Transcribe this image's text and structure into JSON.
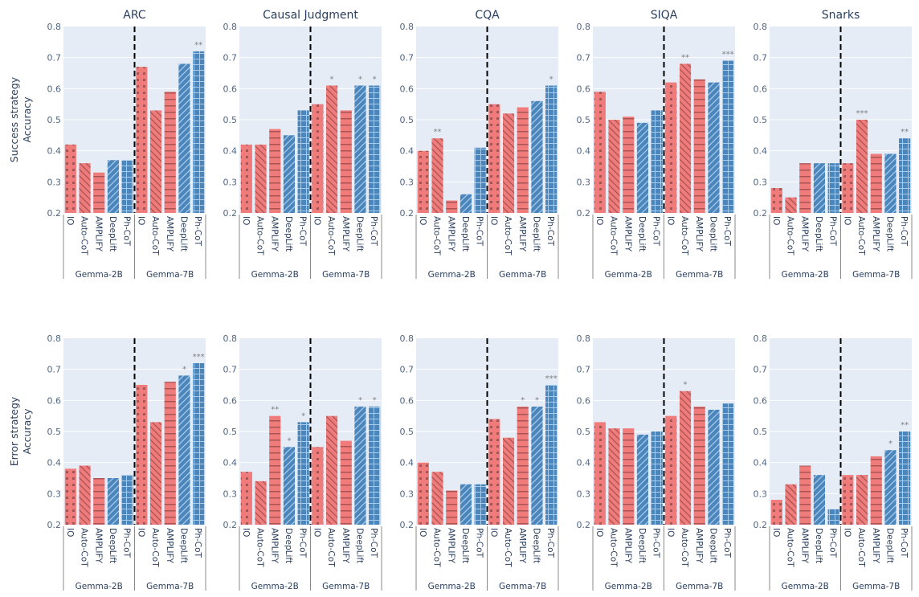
{
  "chart_data": {
    "type": "bar",
    "ylim": [
      0.2,
      0.8
    ],
    "yticks": [
      "0.2",
      "0.3",
      "0.4",
      "0.5",
      "0.6",
      "0.7",
      "0.8"
    ],
    "grid": true,
    "methods": [
      "IO",
      "Auto-CoT",
      "AMPLIFY",
      "DeepLift",
      "Ph-CoT"
    ],
    "groups": [
      "Gemma-2B",
      "Gemma-7B"
    ],
    "colors": {
      "IO": "#ef7b7b",
      "Auto-CoT": "#ef7b7b",
      "AMPLIFY": "#ef7b7b",
      "DeepLift": "#4a85bb",
      "Ph-CoT": "#4a85bb"
    },
    "rows": [
      {
        "ylabel": [
          "Success strategy",
          "Accuracy"
        ],
        "panels": [
          {
            "title": "ARC",
            "series": [
              {
                "name": "Gemma-2B",
                "values": [
                  0.42,
                  0.36,
                  0.33,
                  0.37,
                  0.37
                ],
                "sig": [
                  "",
                  "",
                  "",
                  "",
                  ""
                ]
              },
              {
                "name": "Gemma-7B",
                "values": [
                  0.67,
                  0.53,
                  0.59,
                  0.68,
                  0.72
                ],
                "sig": [
                  "",
                  "",
                  "",
                  "",
                  "**"
                ]
              }
            ]
          },
          {
            "title": "Causal Judgment",
            "series": [
              {
                "name": "Gemma-2B",
                "values": [
                  0.42,
                  0.42,
                  0.47,
                  0.45,
                  0.53
                ],
                "sig": [
                  "",
                  "",
                  "",
                  "",
                  ""
                ]
              },
              {
                "name": "Gemma-7B",
                "values": [
                  0.55,
                  0.61,
                  0.53,
                  0.61,
                  0.61
                ],
                "sig": [
                  "",
                  "*",
                  "",
                  "*",
                  "*"
                ]
              }
            ]
          },
          {
            "title": "CQA",
            "series": [
              {
                "name": "Gemma-2B",
                "values": [
                  0.4,
                  0.44,
                  0.24,
                  0.26,
                  0.41
                ],
                "sig": [
                  "",
                  "**",
                  "",
                  "",
                  ""
                ]
              },
              {
                "name": "Gemma-7B",
                "values": [
                  0.55,
                  0.52,
                  0.54,
                  0.56,
                  0.61
                ],
                "sig": [
                  "",
                  "",
                  "",
                  "",
                  "*"
                ]
              }
            ]
          },
          {
            "title": "SIQA",
            "series": [
              {
                "name": "Gemma-2B",
                "values": [
                  0.59,
                  0.5,
                  0.51,
                  0.49,
                  0.53
                ],
                "sig": [
                  "",
                  "",
                  "",
                  "",
                  ""
                ]
              },
              {
                "name": "Gemma-7B",
                "values": [
                  0.62,
                  0.68,
                  0.63,
                  0.62,
                  0.69
                ],
                "sig": [
                  "",
                  "**",
                  "",
                  "",
                  "***"
                ]
              }
            ]
          },
          {
            "title": "Snarks",
            "series": [
              {
                "name": "Gemma-2B",
                "values": [
                  0.28,
                  0.25,
                  0.36,
                  0.36,
                  0.36
                ],
                "sig": [
                  "",
                  "",
                  "",
                  "",
                  ""
                ]
              },
              {
                "name": "Gemma-7B",
                "values": [
                  0.36,
                  0.5,
                  0.39,
                  0.39,
                  0.44
                ],
                "sig": [
                  "",
                  "***",
                  "",
                  "",
                  "**"
                ]
              }
            ]
          }
        ]
      },
      {
        "ylabel": [
          "Error strategy",
          "Accuracy"
        ],
        "panels": [
          {
            "title": "",
            "series": [
              {
                "name": "Gemma-2B",
                "values": [
                  0.38,
                  0.39,
                  0.35,
                  0.35,
                  0.36
                ],
                "sig": [
                  "",
                  "",
                  "",
                  "",
                  ""
                ]
              },
              {
                "name": "Gemma-7B",
                "values": [
                  0.65,
                  0.53,
                  0.66,
                  0.68,
                  0.72
                ],
                "sig": [
                  "",
                  "",
                  "",
                  "*",
                  "***"
                ]
              }
            ]
          },
          {
            "title": "",
            "series": [
              {
                "name": "Gemma-2B",
                "values": [
                  0.37,
                  0.34,
                  0.55,
                  0.45,
                  0.53
                ],
                "sig": [
                  "",
                  "",
                  "**",
                  "*",
                  "*"
                ]
              },
              {
                "name": "Gemma-7B",
                "values": [
                  0.45,
                  0.55,
                  0.47,
                  0.58,
                  0.58
                ],
                "sig": [
                  "",
                  "",
                  "",
                  "*",
                  "*"
                ]
              }
            ]
          },
          {
            "title": "",
            "series": [
              {
                "name": "Gemma-2B",
                "values": [
                  0.4,
                  0.37,
                  0.31,
                  0.33,
                  0.33
                ],
                "sig": [
                  "",
                  "",
                  "",
                  "",
                  ""
                ]
              },
              {
                "name": "Gemma-7B",
                "values": [
                  0.54,
                  0.48,
                  0.58,
                  0.58,
                  0.65
                ],
                "sig": [
                  "",
                  "",
                  "*",
                  "*",
                  "***"
                ]
              }
            ]
          },
          {
            "title": "",
            "series": [
              {
                "name": "Gemma-2B",
                "values": [
                  0.53,
                  0.51,
                  0.51,
                  0.49,
                  0.5
                ],
                "sig": [
                  "",
                  "",
                  "",
                  "",
                  ""
                ]
              },
              {
                "name": "Gemma-7B",
                "values": [
                  0.55,
                  0.63,
                  0.58,
                  0.57,
                  0.59
                ],
                "sig": [
                  "",
                  "*",
                  "",
                  "",
                  ""
                ]
              }
            ]
          },
          {
            "title": "",
            "series": [
              {
                "name": "Gemma-2B",
                "values": [
                  0.28,
                  0.33,
                  0.39,
                  0.36,
                  0.25
                ],
                "sig": [
                  "",
                  "",
                  "",
                  "",
                  ""
                ]
              },
              {
                "name": "Gemma-7B",
                "values": [
                  0.36,
                  0.36,
                  0.42,
                  0.44,
                  0.5
                ],
                "sig": [
                  "",
                  "",
                  "",
                  "*",
                  "**"
                ]
              }
            ]
          }
        ]
      }
    ]
  }
}
